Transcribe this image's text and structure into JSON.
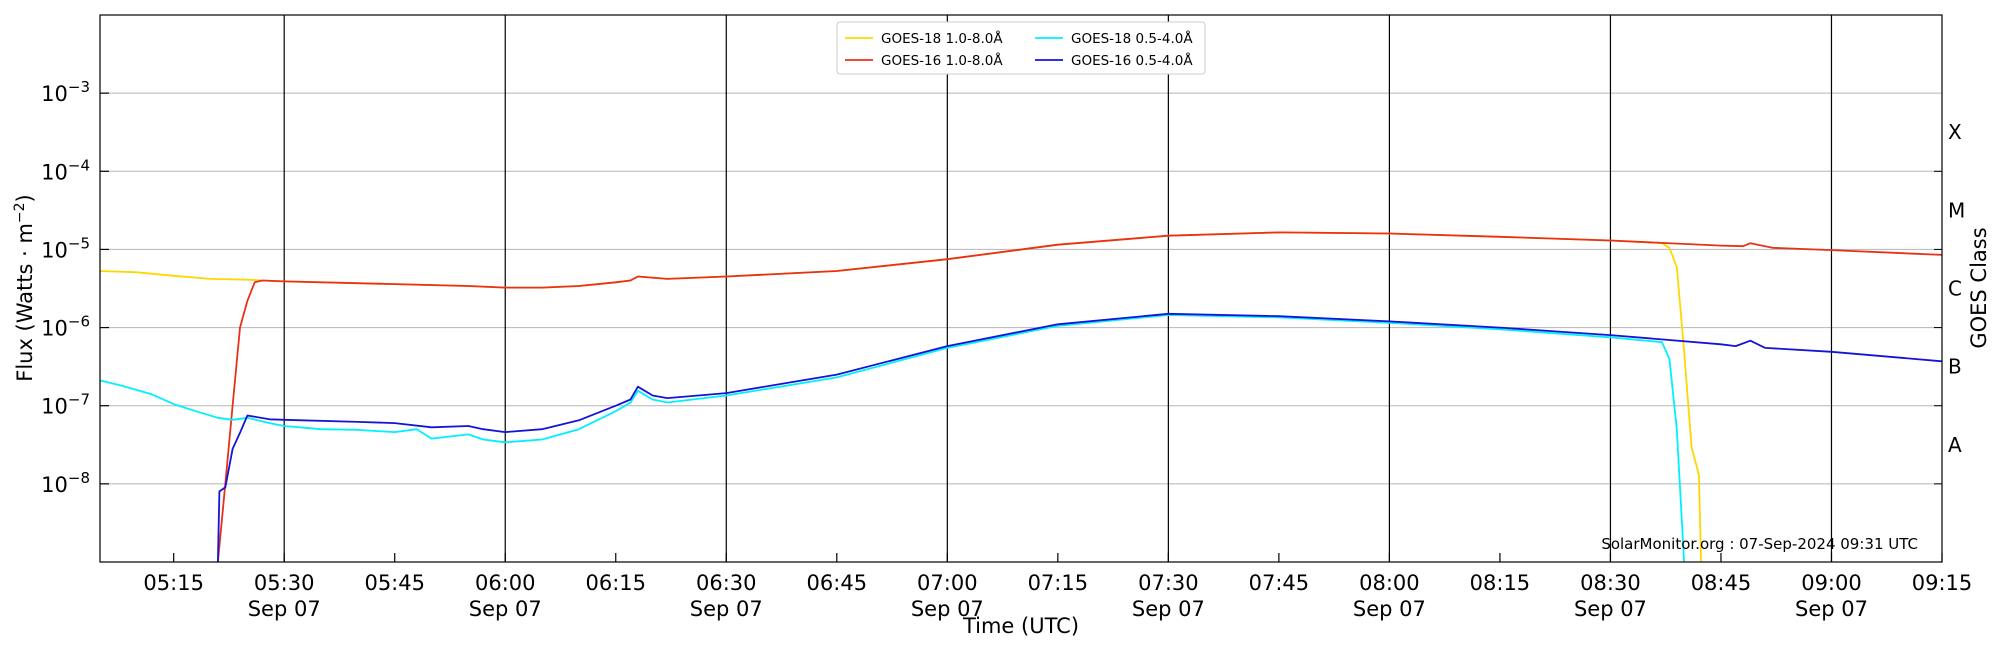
{
  "chart_data": {
    "type": "line",
    "xlabel": "Time (UTC)",
    "ylabel": "Flux (Watts · m",
    "ylabel_sup": "−2",
    "ylabel_close": ")",
    "right_label": "GOES Class",
    "watermark": "SolarMonitor.org : 07-Sep-2024 09:31 UTC",
    "y_scale": "log",
    "ylim": [
      1e-09,
      0.01
    ],
    "xlim": [
      "05:05",
      "09:15"
    ],
    "grid": "horizontal",
    "legend_position": "top-center",
    "x_ticks": [
      {
        "t": "05:15",
        "label": "05:15",
        "sub": ""
      },
      {
        "t": "05:30",
        "label": "05:30",
        "sub": "Sep 07"
      },
      {
        "t": "05:45",
        "label": "05:45",
        "sub": ""
      },
      {
        "t": "06:00",
        "label": "06:00",
        "sub": "Sep 07"
      },
      {
        "t": "06:15",
        "label": "06:15",
        "sub": ""
      },
      {
        "t": "06:30",
        "label": "06:30",
        "sub": "Sep 07"
      },
      {
        "t": "06:45",
        "label": "06:45",
        "sub": ""
      },
      {
        "t": "07:00",
        "label": "07:00",
        "sub": "Sep 07"
      },
      {
        "t": "07:15",
        "label": "07:15",
        "sub": ""
      },
      {
        "t": "07:30",
        "label": "07:30",
        "sub": "Sep 07"
      },
      {
        "t": "07:45",
        "label": "07:45",
        "sub": ""
      },
      {
        "t": "08:00",
        "label": "08:00",
        "sub": "Sep 07"
      },
      {
        "t": "08:15",
        "label": "08:15",
        "sub": ""
      },
      {
        "t": "08:30",
        "label": "08:30",
        "sub": "Sep 07"
      },
      {
        "t": "08:45",
        "label": "08:45",
        "sub": ""
      },
      {
        "t": "09:00",
        "label": "09:00",
        "sub": "Sep 07"
      },
      {
        "t": "09:15",
        "label": "09:15",
        "sub": ""
      }
    ],
    "vertical_lines": [
      "05:30",
      "06:00",
      "06:30",
      "07:00",
      "07:30",
      "08:00",
      "08:30",
      "09:00"
    ],
    "y_ticks": [
      {
        "exp": -8,
        "label": "10",
        "sup": "−8"
      },
      {
        "exp": -7,
        "label": "10",
        "sup": "−7"
      },
      {
        "exp": -6,
        "label": "10",
        "sup": "−6"
      },
      {
        "exp": -5,
        "label": "10",
        "sup": "−5"
      },
      {
        "exp": -4,
        "label": "10",
        "sup": "−4"
      },
      {
        "exp": -3,
        "label": "10",
        "sup": "−3"
      }
    ],
    "class_labels": [
      {
        "label": "A",
        "exp": -7.5
      },
      {
        "label": "B",
        "exp": -6.5
      },
      {
        "label": "C",
        "exp": -5.5
      },
      {
        "label": "M",
        "exp": -4.5
      },
      {
        "label": "X",
        "exp": -3.5
      }
    ],
    "series": [
      {
        "name": "GOES-18 1.0-8.0Å",
        "color": "#ffd700",
        "points": [
          [
            "05:05",
            5.3e-06
          ],
          [
            "05:10",
            5.1e-06
          ],
          [
            "05:15",
            4.6e-06
          ],
          [
            "05:20",
            4.2e-06
          ],
          [
            "05:25",
            4.1e-06
          ],
          [
            "05:27",
            4e-06
          ],
          [
            "05:30",
            3.9e-06
          ],
          [
            "05:45",
            3.6e-06
          ],
          [
            "05:55",
            3.4e-06
          ],
          [
            "06:00",
            3.25e-06
          ],
          [
            "06:05",
            3.25e-06
          ],
          [
            "06:10",
            3.4e-06
          ],
          [
            "06:15",
            3.8e-06
          ],
          [
            "06:17",
            4e-06
          ],
          [
            "06:18",
            4.5e-06
          ],
          [
            "06:22",
            4.2e-06
          ],
          [
            "06:30",
            4.5e-06
          ],
          [
            "06:45",
            5.3e-06
          ],
          [
            "07:00",
            7.5e-06
          ],
          [
            "07:15",
            1.15e-05
          ],
          [
            "07:30",
            1.5e-05
          ],
          [
            "07:45",
            1.65e-05
          ],
          [
            "08:00",
            1.6e-05
          ],
          [
            "08:15",
            1.45e-05
          ],
          [
            "08:30",
            1.3e-05
          ],
          [
            "08:37",
            1.2e-05
          ],
          [
            "08:38",
            1.05e-05
          ],
          [
            "08:39",
            6e-06
          ],
          [
            "08:40",
            5e-07
          ],
          [
            "08:41",
            3e-08
          ],
          [
            "08:42",
            1.3e-08
          ],
          [
            "08:42.3",
            1e-09
          ]
        ]
      },
      {
        "name": "GOES-16 1.0-8.0Å",
        "color": "#e8311a",
        "points": [
          [
            "05:21",
            1e-09
          ],
          [
            "05:22",
            1e-08
          ],
          [
            "05:23",
            1e-07
          ],
          [
            "05:24",
            1e-06
          ],
          [
            "05:25",
            2.2e-06
          ],
          [
            "05:26",
            3.8e-06
          ],
          [
            "05:27",
            4e-06
          ],
          [
            "05:30",
            3.9e-06
          ],
          [
            "05:45",
            3.6e-06
          ],
          [
            "05:55",
            3.4e-06
          ],
          [
            "06:00",
            3.25e-06
          ],
          [
            "06:05",
            3.25e-06
          ],
          [
            "06:10",
            3.4e-06
          ],
          [
            "06:15",
            3.8e-06
          ],
          [
            "06:17",
            4e-06
          ],
          [
            "06:18",
            4.5e-06
          ],
          [
            "06:22",
            4.2e-06
          ],
          [
            "06:30",
            4.5e-06
          ],
          [
            "06:45",
            5.3e-06
          ],
          [
            "07:00",
            7.5e-06
          ],
          [
            "07:15",
            1.15e-05
          ],
          [
            "07:30",
            1.5e-05
          ],
          [
            "07:45",
            1.65e-05
          ],
          [
            "08:00",
            1.6e-05
          ],
          [
            "08:15",
            1.45e-05
          ],
          [
            "08:30",
            1.3e-05
          ],
          [
            "08:45",
            1.12e-05
          ],
          [
            "08:48",
            1.1e-05
          ],
          [
            "08:49",
            1.2e-05
          ],
          [
            "08:52",
            1.05e-05
          ],
          [
            "09:00",
            9.8e-06
          ],
          [
            "09:15",
            8.5e-06
          ]
        ]
      },
      {
        "name": "GOES-18 0.5-4.0Å",
        "color": "#00f0ff",
        "points": [
          [
            "05:05",
            2.1e-07
          ],
          [
            "05:08",
            1.8e-07
          ],
          [
            "05:12",
            1.4e-07
          ],
          [
            "05:15",
            1.05e-07
          ],
          [
            "05:18",
            8.5e-08
          ],
          [
            "05:21",
            7e-08
          ],
          [
            "05:23",
            6.6e-08
          ],
          [
            "05:25",
            7e-08
          ],
          [
            "05:28",
            6e-08
          ],
          [
            "05:30",
            5.5e-08
          ],
          [
            "05:35",
            5e-08
          ],
          [
            "05:40",
            4.9e-08
          ],
          [
            "05:45",
            4.6e-08
          ],
          [
            "05:48",
            5e-08
          ],
          [
            "05:50",
            3.8e-08
          ],
          [
            "05:55",
            4.3e-08
          ],
          [
            "05:57",
            3.7e-08
          ],
          [
            "06:00",
            3.4e-08
          ],
          [
            "06:05",
            3.7e-08
          ],
          [
            "06:10",
            5e-08
          ],
          [
            "06:15",
            8.5e-08
          ],
          [
            "06:17",
            1.1e-07
          ],
          [
            "06:18",
            1.55e-07
          ],
          [
            "06:20",
            1.2e-07
          ],
          [
            "06:22",
            1.1e-07
          ],
          [
            "06:30",
            1.35e-07
          ],
          [
            "06:45",
            2.3e-07
          ],
          [
            "07:00",
            5.5e-07
          ],
          [
            "07:15",
            1.05e-06
          ],
          [
            "07:30",
            1.45e-06
          ],
          [
            "07:45",
            1.35e-06
          ],
          [
            "08:00",
            1.15e-06
          ],
          [
            "08:15",
            9.5e-07
          ],
          [
            "08:30",
            7.5e-07
          ],
          [
            "08:37",
            6.5e-07
          ],
          [
            "08:38",
            4e-07
          ],
          [
            "08:39",
            5e-08
          ],
          [
            "08:40",
            1e-09
          ]
        ]
      },
      {
        "name": "GOES-16 0.5-4.0Å",
        "color": "#1414d8",
        "points": [
          [
            "05:21",
            1e-09
          ],
          [
            "05:21.2",
            8e-09
          ],
          [
            "05:22",
            9e-09
          ],
          [
            "05:23",
            2.8e-08
          ],
          [
            "05:24",
            4.5e-08
          ],
          [
            "05:25",
            7.5e-08
          ],
          [
            "05:28",
            6.7e-08
          ],
          [
            "05:30",
            6.6e-08
          ],
          [
            "05:40",
            6.2e-08
          ],
          [
            "05:45",
            6e-08
          ],
          [
            "05:50",
            5.3e-08
          ],
          [
            "05:55",
            5.5e-08
          ],
          [
            "05:57",
            5e-08
          ],
          [
            "06:00",
            4.6e-08
          ],
          [
            "06:05",
            5e-08
          ],
          [
            "06:10",
            6.5e-08
          ],
          [
            "06:15",
            1e-07
          ],
          [
            "06:17",
            1.2e-07
          ],
          [
            "06:18",
            1.75e-07
          ],
          [
            "06:20",
            1.35e-07
          ],
          [
            "06:22",
            1.25e-07
          ],
          [
            "06:30",
            1.45e-07
          ],
          [
            "06:45",
            2.5e-07
          ],
          [
            "07:00",
            5.8e-07
          ],
          [
            "07:15",
            1.1e-06
          ],
          [
            "07:30",
            1.5e-06
          ],
          [
            "07:45",
            1.4e-06
          ],
          [
            "08:00",
            1.2e-06
          ],
          [
            "08:15",
            1e-06
          ],
          [
            "08:30",
            8e-07
          ],
          [
            "08:45",
            6.1e-07
          ],
          [
            "08:47",
            5.8e-07
          ],
          [
            "08:49",
            6.8e-07
          ],
          [
            "08:51",
            5.5e-07
          ],
          [
            "09:00",
            4.9e-07
          ],
          [
            "09:15",
            3.7e-07
          ]
        ]
      }
    ]
  }
}
